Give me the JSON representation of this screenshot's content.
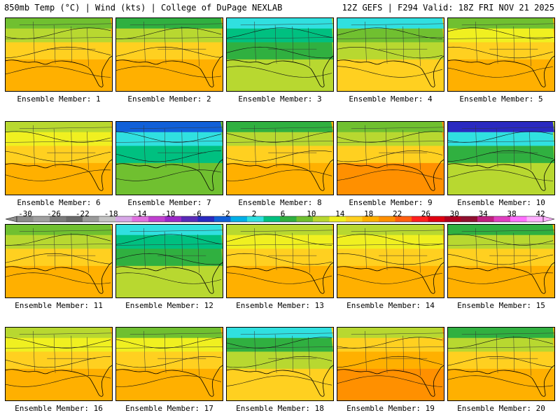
{
  "header": {
    "left": "850mb Temp (°C) | Wind (kts) | College of DuPage NEXLAB",
    "right": "12Z GEFS | F294 Valid: 18Z FRI NOV 21 2025"
  },
  "legend": {
    "labels": [
      "-30",
      "-26",
      "-22",
      "-18",
      "-14",
      "-10",
      "-6",
      "-2",
      "2",
      "6",
      "10",
      "14",
      "18",
      "22",
      "26",
      "30",
      "34",
      "38",
      "42"
    ],
    "colors": [
      "#8c8c8c",
      "#a0a0a0",
      "#7c7c7c",
      "#6a6a6a",
      "#9a9a9a",
      "#c4c4c4",
      "#d8a8e8",
      "#e070e0",
      "#c040d0",
      "#9c28c8",
      "#5a2ab8",
      "#2a2ac0",
      "#1060d8",
      "#00b0e8",
      "#30e0e0",
      "#00c080",
      "#30b040",
      "#70c030",
      "#b8d830",
      "#f0f020",
      "#ffd020",
      "#ffb000",
      "#ff9000",
      "#ff6010",
      "#ff2020",
      "#e00010",
      "#b00020",
      "#901030",
      "#c02080",
      "#e040c0",
      "#ff70ff",
      "#ffb0ff"
    ]
  },
  "members": [
    {
      "label": "Ensemble Member: 1",
      "id": 1
    },
    {
      "label": "Ensemble Member: 2",
      "id": 2
    },
    {
      "label": "Ensemble Member: 3",
      "id": 3
    },
    {
      "label": "Ensemble Member: 4",
      "id": 4
    },
    {
      "label": "Ensemble Member: 5",
      "id": 5
    },
    {
      "label": "Ensemble Member: 6",
      "id": 6
    },
    {
      "label": "Ensemble Member: 7",
      "id": 7
    },
    {
      "label": "Ensemble Member: 8",
      "id": 8
    },
    {
      "label": "Ensemble Member: 9",
      "id": 9
    },
    {
      "label": "Ensemble Member: 10",
      "id": 10
    },
    {
      "label": "Ensemble Member: 11",
      "id": 11
    },
    {
      "label": "Ensemble Member: 12",
      "id": 12
    },
    {
      "label": "Ensemble Member: 13",
      "id": 13
    },
    {
      "label": "Ensemble Member: 14",
      "id": 14
    },
    {
      "label": "Ensemble Member: 15",
      "id": 15
    },
    {
      "label": "Ensemble Member: 16",
      "id": 16
    },
    {
      "label": "Ensemble Member: 17",
      "id": 17
    },
    {
      "label": "Ensemble Member: 18",
      "id": 18
    },
    {
      "label": "Ensemble Member: 19",
      "id": 19
    },
    {
      "label": "Ensemble Member: 20",
      "id": 20
    }
  ]
}
